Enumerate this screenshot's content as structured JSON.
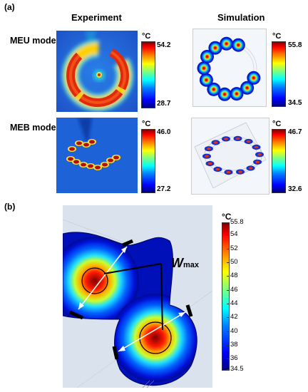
{
  "panel_a_label": "(a)",
  "panel_b_label": "(b)",
  "col_experiment": "Experiment",
  "col_simulation": "Simulation",
  "row_meu": "MEU mode",
  "row_meb": "MEB mode",
  "unit": "°C",
  "colorbars": {
    "meu_exp": {
      "max": "54.2",
      "min": "28.7"
    },
    "meu_sim": {
      "max": "55.8",
      "min": "34.5"
    },
    "meb_exp": {
      "max": "46.0",
      "min": "27.2"
    },
    "meb_sim": {
      "max": "46.7",
      "min": "32.6"
    }
  },
  "b_colorbar": {
    "unit": "°C",
    "ticks": [
      "55.8",
      "54",
      "52",
      "50",
      "48",
      "46",
      "44",
      "42",
      "40",
      "38",
      "36",
      "34.5"
    ]
  },
  "wmax_main": "W",
  "wmax_sub": "max"
}
